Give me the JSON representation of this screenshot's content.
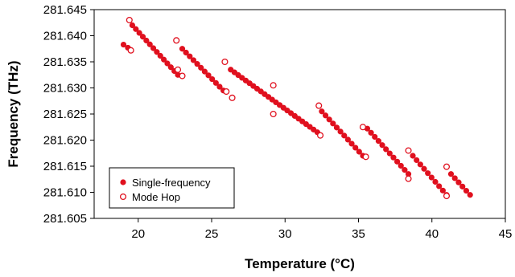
{
  "chart_data": {
    "type": "scatter",
    "title": "",
    "xlabel": "Temperature (°C)",
    "ylabel": "Frequency (THz)",
    "xlim": [
      17,
      45
    ],
    "ylim": [
      281.605,
      281.645
    ],
    "x_ticks": [
      20,
      25,
      30,
      35,
      40,
      45
    ],
    "y_ticks": [
      281.605,
      281.61,
      281.615,
      281.62,
      281.625,
      281.63,
      281.635,
      281.64,
      281.645
    ],
    "y_tick_labels": [
      "281.605",
      "281.610",
      "281.615",
      "281.620",
      "281.625",
      "281.630",
      "281.635",
      "281.640",
      "281.645"
    ],
    "grid": false,
    "legend_position": "bottom-left",
    "series": [
      {
        "name": "Single-frequency",
        "color": "#e0101e",
        "marker": "filled-circle",
        "segments": [
          {
            "x_start": 19.6,
            "y_start": 281.642,
            "x_end": 22.7,
            "y_end": 281.6325,
            "n": 14
          },
          {
            "x_start": 19.0,
            "y_start": 281.6383,
            "x_end": 19.3,
            "y_end": 281.6377,
            "n": 2
          },
          {
            "x_start": 23.0,
            "y_start": 281.6375,
            "x_end": 25.8,
            "y_end": 281.6295,
            "n": 12
          },
          {
            "x_start": 26.3,
            "y_start": 281.6335,
            "x_end": 32.2,
            "y_end": 281.6215,
            "n": 24
          },
          {
            "x_start": 32.5,
            "y_start": 281.6255,
            "x_end": 35.3,
            "y_end": 281.617,
            "n": 12
          },
          {
            "x_start": 35.6,
            "y_start": 281.6222,
            "x_end": 38.4,
            "y_end": 281.6135,
            "n": 12
          },
          {
            "x_start": 38.7,
            "y_start": 281.617,
            "x_end": 41.0,
            "y_end": 281.6095,
            "n": 10
          },
          {
            "x_start": 41.3,
            "y_start": 281.6135,
            "x_end": 42.6,
            "y_end": 281.6095,
            "n": 6
          }
        ]
      },
      {
        "name": "Mode Hop",
        "color": "#e0101e",
        "marker": "open-circle",
        "points": [
          {
            "x": 19.4,
            "y": 281.643
          },
          {
            "x": 19.5,
            "y": 281.6372
          },
          {
            "x": 22.6,
            "y": 281.6391
          },
          {
            "x": 22.7,
            "y": 281.6335
          },
          {
            "x": 23.0,
            "y": 281.6323
          },
          {
            "x": 25.9,
            "y": 281.635
          },
          {
            "x": 26.0,
            "y": 281.6293
          },
          {
            "x": 26.4,
            "y": 281.6281
          },
          {
            "x": 29.2,
            "y": 281.6305
          },
          {
            "x": 29.2,
            "y": 281.625
          },
          {
            "x": 32.3,
            "y": 281.6266
          },
          {
            "x": 32.4,
            "y": 281.6209
          },
          {
            "x": 35.3,
            "y": 281.6225
          },
          {
            "x": 35.5,
            "y": 281.6168
          },
          {
            "x": 38.4,
            "y": 281.618
          },
          {
            "x": 38.4,
            "y": 281.6126
          },
          {
            "x": 41.0,
            "y": 281.6149
          },
          {
            "x": 41.0,
            "y": 281.6093
          }
        ]
      }
    ]
  }
}
